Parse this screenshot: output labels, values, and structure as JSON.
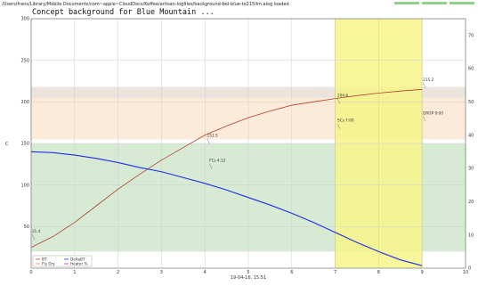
{
  "status_text": "/Users/frans/Library/Mobile Documents/com~apple~CloudDocs/Koffee/artisan-logfiles/background-bol-blue-to215llm.alog  loaded",
  "chart_data": {
    "type": "line",
    "title": "Concept background for Blue Mountain ...",
    "ylabel": "C",
    "xlabel": "",
    "footer": "19-04-16, 15:51",
    "xlim": [
      0,
      10
    ],
    "ylim": [
      0,
      300
    ],
    "y2lim": [
      0,
      75
    ],
    "x_ticks": [
      0,
      1,
      2,
      3,
      4,
      5,
      6,
      7,
      8,
      9,
      10
    ],
    "y_ticks": [
      50,
      100,
      150,
      200,
      250,
      300
    ],
    "y2_ticks": [
      0,
      10,
      20,
      30,
      40,
      50,
      60,
      70
    ],
    "grid": true,
    "legend_position": "bottom-left",
    "legend": [
      "BT",
      "DeltaBT",
      "Fly Dry",
      "Heater %"
    ],
    "bands": [
      {
        "y0": 20,
        "y1": 150,
        "color": "#d6ead4"
      },
      {
        "y0": 155,
        "y1": 205,
        "color": "#fcebd8"
      },
      {
        "y0": 205,
        "y1": 218,
        "color": "#ebe3dc"
      }
    ],
    "highlight": {
      "x0": 7.0,
      "x1": 9.0,
      "color": "#f6f58a"
    },
    "series": [
      {
        "name": "BT",
        "color": "#b0412e",
        "x": [
          0,
          0.5,
          1,
          1.5,
          2,
          2.5,
          3,
          3.5,
          4,
          4.5,
          5,
          5.5,
          6,
          6.5,
          7,
          7.5,
          8,
          8.5,
          9
        ],
        "values": [
          25,
          38,
          55,
          75,
          95,
          113,
          130,
          145,
          160,
          171,
          181,
          189,
          196,
          200,
          204,
          207.5,
          210.5,
          213,
          215
        ]
      },
      {
        "name": "DeltaBT",
        "color": "#1c2ee6",
        "x": [
          0,
          0.5,
          1,
          1.5,
          2,
          2.5,
          3,
          3.5,
          4,
          4.5,
          5,
          5.5,
          6,
          6.5,
          7,
          7.5,
          8,
          8.5,
          9
        ],
        "values": [
          140,
          139,
          136,
          132,
          127,
          121,
          116,
          109,
          102,
          94,
          85,
          76,
          66,
          55,
          43,
          31,
          20,
          10,
          3
        ]
      }
    ],
    "annotations": [
      {
        "x": 0.02,
        "y": 43,
        "text": "21.4"
      },
      {
        "x": 4.05,
        "y": 158,
        "text": "151.5"
      },
      {
        "x": 4.1,
        "y": 128,
        "text": "FCs 4:12"
      },
      {
        "x": 7.05,
        "y": 206,
        "text": "204.6"
      },
      {
        "x": 7.05,
        "y": 176,
        "text": "SCs 7:00"
      },
      {
        "x": 9.02,
        "y": 225,
        "text": "215.2"
      },
      {
        "x": 9.02,
        "y": 185,
        "text": "DROP 9:00"
      }
    ]
  }
}
